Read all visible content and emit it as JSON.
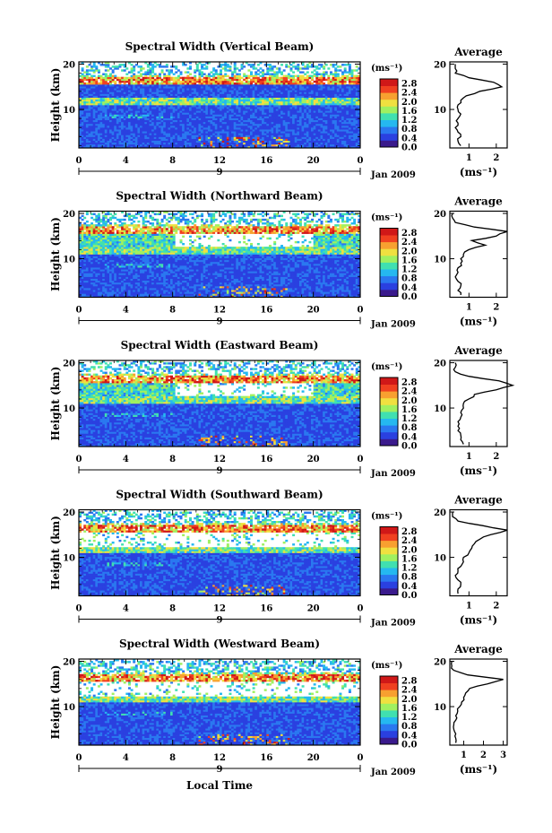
{
  "figure": {
    "ylabel": "Height (km)",
    "xlabel": "Local Time",
    "date_label": "Jan 2009",
    "day_label": "9",
    "x_ticks": [
      "0",
      "4",
      "8",
      "12",
      "16",
      "20",
      "0"
    ],
    "y_ticks": [
      "20",
      "10"
    ],
    "colorbar_unit": "(ms⁻¹)",
    "colorbar_ticks": [
      "2.8",
      "2.4",
      "2.0",
      "1.6",
      "1.2",
      "0.8",
      "0.4",
      "0.0"
    ],
    "profile_xlabel": "(ms⁻¹)",
    "colorscale": [
      "#3a1a8c",
      "#2a40e0",
      "#2a78f0",
      "#25b8f0",
      "#40e0b0",
      "#a0f060",
      "#f0e040",
      "#f8a030",
      "#f04020",
      "#d01818"
    ]
  },
  "chart_data": [
    {
      "type": "heatmap",
      "title": "Spectral Width (Vertical Beam)",
      "xlim": [
        0,
        24
      ],
      "ylim": [
        1.5,
        20.5
      ],
      "clim": [
        0.0,
        3.0
      ],
      "profile": {
        "title": "Average",
        "x_ticks": [
          "1",
          "2"
        ],
        "heights": [
          2,
          3,
          4,
          5,
          6,
          7,
          8,
          9,
          10,
          11,
          12,
          13,
          14,
          15,
          16,
          17,
          18,
          19,
          20
        ],
        "values": [
          0.7,
          0.6,
          0.7,
          0.6,
          0.5,
          0.6,
          0.6,
          0.7,
          0.6,
          0.6,
          0.7,
          0.9,
          1.4,
          2.2,
          1.9,
          1.0,
          0.5,
          0.5,
          0.5
        ]
      }
    },
    {
      "type": "heatmap",
      "title": "Spectral Width (Northward Beam)",
      "xlim": [
        0,
        24
      ],
      "ylim": [
        1.5,
        20.5
      ],
      "clim": [
        0.0,
        3.0
      ],
      "profile": {
        "title": "Average",
        "x_ticks": [
          "1",
          "2"
        ],
        "heights": [
          2,
          3,
          4,
          5,
          6,
          7,
          8,
          9,
          10,
          11,
          12,
          13,
          14,
          15,
          16,
          17,
          18,
          19,
          20
        ],
        "values": [
          0.7,
          0.6,
          0.7,
          0.6,
          0.5,
          0.6,
          0.6,
          0.7,
          0.7,
          0.8,
          1.0,
          1.6,
          1.1,
          2.0,
          2.4,
          1.2,
          0.5,
          0.4,
          0.4
        ]
      }
    },
    {
      "type": "heatmap",
      "title": "Spectral Width (Eastward Beam)",
      "xlim": [
        0,
        24
      ],
      "ylim": [
        1.5,
        20.5
      ],
      "clim": [
        0.0,
        3.0
      ],
      "profile": {
        "title": "Average",
        "x_ticks": [
          "1",
          "2"
        ],
        "heights": [
          2,
          3,
          4,
          5,
          6,
          7,
          8,
          9,
          10,
          11,
          12,
          13,
          14,
          15,
          16,
          17,
          18,
          19,
          20
        ],
        "values": [
          0.8,
          0.7,
          0.7,
          0.6,
          0.6,
          0.6,
          0.7,
          0.7,
          0.8,
          0.8,
          1.0,
          1.2,
          2.0,
          2.6,
          2.1,
          1.0,
          0.5,
          0.5,
          0.5
        ]
      }
    },
    {
      "type": "heatmap",
      "title": "Spectral Width (Southward Beam)",
      "xlim": [
        0,
        24
      ],
      "ylim": [
        1.5,
        20.5
      ],
      "clim": [
        0.0,
        3.0
      ],
      "profile": {
        "title": "Average",
        "x_ticks": [
          "1",
          "2"
        ],
        "heights": [
          2,
          3,
          4,
          5,
          6,
          7,
          8,
          9,
          10,
          11,
          12,
          13,
          14,
          15,
          16,
          17,
          18,
          19,
          20
        ],
        "values": [
          0.6,
          0.6,
          0.7,
          0.6,
          0.5,
          0.6,
          0.7,
          0.8,
          0.8,
          1.0,
          1.1,
          1.2,
          1.4,
          1.8,
          2.4,
          1.5,
          0.6,
          0.4,
          0.4
        ]
      }
    },
    {
      "type": "heatmap",
      "title": "Spectral Width (Westward Beam)",
      "xlim": [
        0,
        24
      ],
      "ylim": [
        1.5,
        20.5
      ],
      "clim": [
        0.0,
        3.0
      ],
      "profile": {
        "title": "Average",
        "x_ticks": [
          "1",
          "2",
          "3"
        ],
        "heights": [
          2,
          3,
          4,
          5,
          6,
          7,
          8,
          9,
          10,
          11,
          12,
          13,
          14,
          15,
          16,
          17,
          18,
          19,
          20
        ],
        "values": [
          0.6,
          0.6,
          0.6,
          0.5,
          0.5,
          0.6,
          0.6,
          0.7,
          0.8,
          0.9,
          1.0,
          1.1,
          1.3,
          2.2,
          3.0,
          1.2,
          0.5,
          0.4,
          0.4
        ]
      }
    }
  ]
}
